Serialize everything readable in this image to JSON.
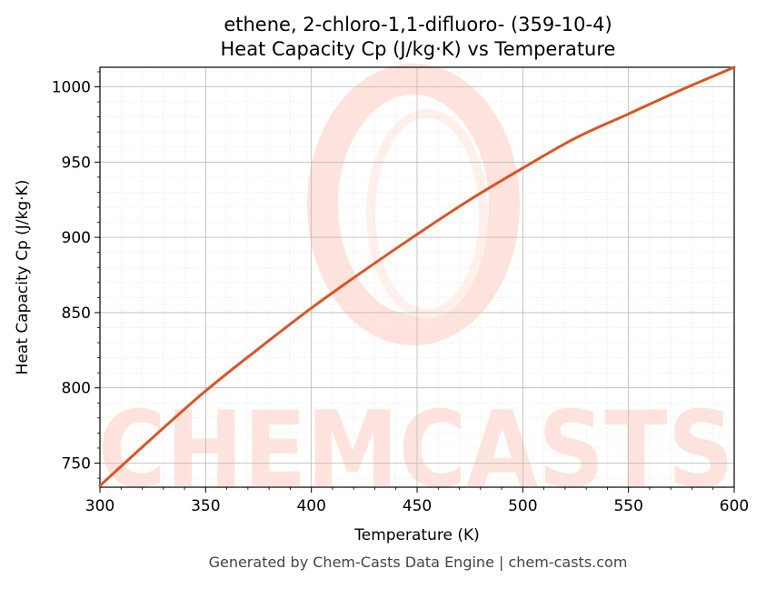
{
  "chart_data": {
    "type": "line",
    "title_line1": "ethene, 2-chloro-1,1-difluoro- (359-10-4)",
    "title_line2": "Heat Capacity Cp (J/kg·K) vs Temperature",
    "xlabel": "Temperature (K)",
    "ylabel": "Heat Capacity Cp (J/kg·K)",
    "xlim": [
      300,
      600
    ],
    "ylim": [
      734,
      1013
    ],
    "x_ticks": [
      300,
      350,
      400,
      450,
      500,
      550,
      600
    ],
    "y_ticks": [
      750,
      800,
      850,
      900,
      950,
      1000
    ],
    "grid": true,
    "series": [
      {
        "color": "#d95525",
        "x": [
          300,
          325,
          350,
          375,
          400,
          425,
          450,
          475,
          500,
          525,
          550,
          575,
          600
        ],
        "y": [
          735,
          767,
          798,
          826,
          853,
          878,
          902,
          925,
          946,
          966,
          982,
          998,
          1013
        ]
      }
    ]
  },
  "watermark": {
    "text": "CHEMCASTS",
    "color": "#ffe3dc"
  },
  "footer": {
    "text": "Generated by Chem-Casts Data Engine | chem-casts.com"
  }
}
